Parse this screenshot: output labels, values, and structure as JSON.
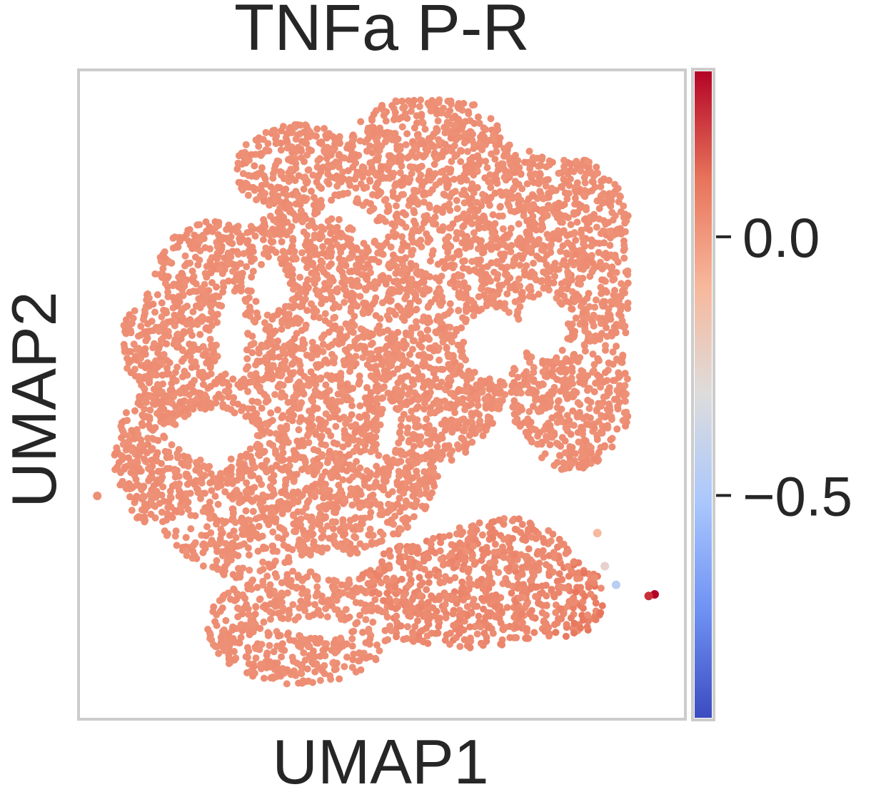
{
  "chart_data": {
    "type": "scatter",
    "title": "TNFa P-R",
    "xlabel": "UMAP1",
    "ylabel": "UMAP2",
    "x_ticks": [],
    "y_ticks": [],
    "grid": false,
    "colormap": {
      "name": "coolwarm",
      "vmin": -0.93,
      "vmax": 0.32,
      "stops": [
        "#3b4cc0",
        "#6f92f3",
        "#aac7fd",
        "#dddcdc",
        "#f7b89c",
        "#e7745b",
        "#b40426"
      ]
    },
    "colorbar": {
      "ticks": [
        {
          "value": 0.0,
          "label": "0.0"
        },
        {
          "value": -0.5,
          "label": "−0.5"
        }
      ]
    },
    "series": [
      {
        "point_color": "#ef9377",
        "baseline_value": 0.03,
        "regions": [
          {
            "name": "main-cloud",
            "x_range": [
              -4.5,
              8.5
            ],
            "y_range": [
              -5.0,
              6.5
            ],
            "typical_value": 0.03
          },
          {
            "name": "lower-right-arm",
            "x_range": [
              3.0,
              8.6
            ],
            "y_range": [
              -6.2,
              -3.0
            ],
            "typical_value": 0.08
          },
          {
            "name": "lower-right-tip",
            "x_range": [
              7.8,
              8.6
            ],
            "y_range": [
              -5.2,
              -4.6
            ],
            "typical_value": 0.32
          }
        ],
        "outliers": [
          {
            "x": 8.58,
            "y": -4.78,
            "value": 0.32
          },
          {
            "x": 8.42,
            "y": -4.82,
            "value": 0.24
          },
          {
            "x": 7.55,
            "y": -4.55,
            "value": -0.45
          },
          {
            "x": 7.25,
            "y": -4.1,
            "value": -0.25
          },
          {
            "x": 7.05,
            "y": -3.3,
            "value": -0.1
          },
          {
            "x": -6.3,
            "y": -2.4,
            "value": 0.03
          }
        ]
      }
    ],
    "xlim": [
      -6.8,
      9.4
    ],
    "ylim": [
      -7.8,
      7.9
    ]
  }
}
